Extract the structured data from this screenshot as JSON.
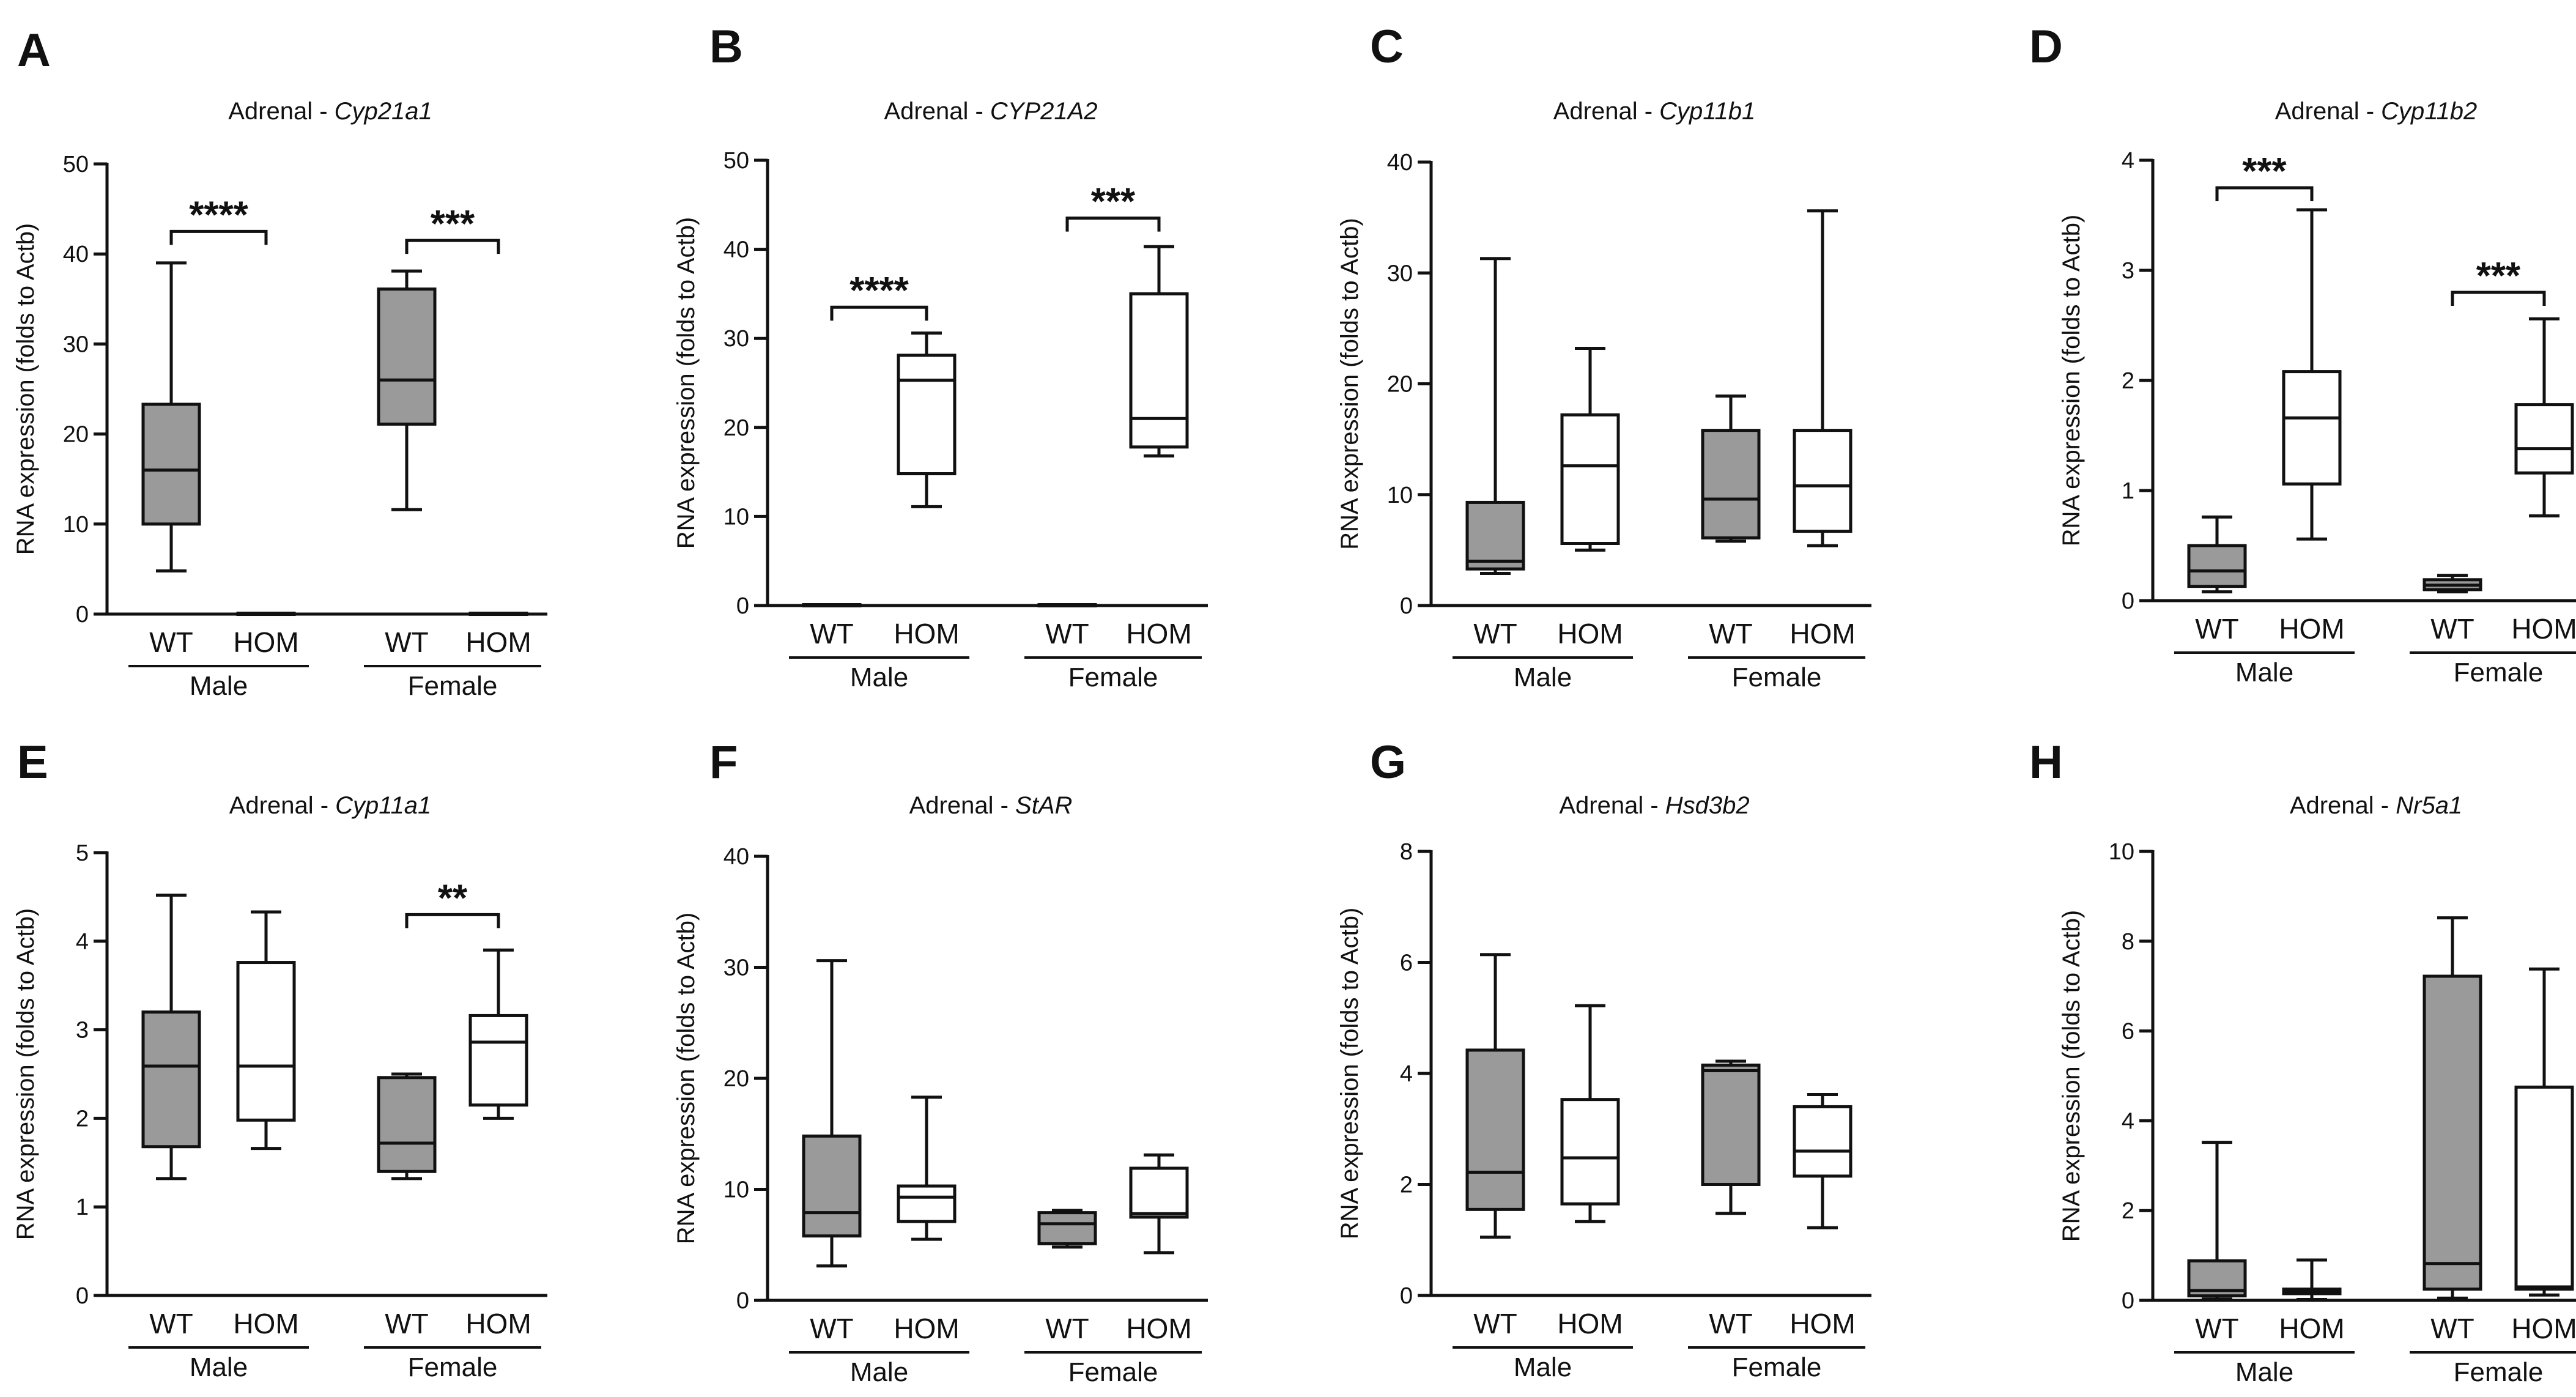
{
  "figure_title": "Adrenal RNA expression box plots",
  "colors": {
    "wt_fill": "#9a9a9a",
    "hom_fill": "#ffffff",
    "stroke": "#111111"
  },
  "chart_data": [
    {
      "id": "A",
      "type": "box",
      "title_prefix": "Adrenal - ",
      "gene": "Cyp21a1",
      "ylabel": "RNA expression (folds to Actb)",
      "ylim": [
        0,
        50
      ],
      "yticks": [
        0,
        10,
        20,
        30,
        40,
        50
      ],
      "groups": [
        {
          "sex": "Male",
          "boxes": [
            {
              "genotype": "WT",
              "min": 4.8,
              "q1": 10,
              "median": 16,
              "q3": 23.3,
              "max": 39
            },
            {
              "genotype": "HOM",
              "min": 0.1,
              "q1": 0.1,
              "median": 0.1,
              "q3": 0.1,
              "max": 0.1
            }
          ]
        },
        {
          "sex": "Female",
          "boxes": [
            {
              "genotype": "WT",
              "min": 11.6,
              "q1": 21.1,
              "median": 26,
              "q3": 36.1,
              "max": 38.1
            },
            {
              "genotype": "HOM",
              "min": 0.1,
              "q1": 0.1,
              "median": 0.1,
              "q3": 0.1,
              "max": 0.1
            }
          ]
        }
      ],
      "significance": [
        {
          "label": "****",
          "group": 0,
          "y": 42.5
        },
        {
          "label": "***",
          "group": 1,
          "y": 41.5
        }
      ]
    },
    {
      "id": "B",
      "type": "box",
      "title_prefix": "Adrenal - ",
      "gene": "CYP21A2",
      "ylabel": "RNA expression (folds to Actb)",
      "ylim": [
        0,
        50
      ],
      "yticks": [
        0,
        10,
        20,
        30,
        40,
        50
      ],
      "groups": [
        {
          "sex": "Male",
          "boxes": [
            {
              "genotype": "WT",
              "min": 0.1,
              "q1": 0.1,
              "median": 0.1,
              "q3": 0.1,
              "max": 0.1
            },
            {
              "genotype": "HOM",
              "min": 11.1,
              "q1": 14.8,
              "median": 25.3,
              "q3": 28.1,
              "max": 30.6
            }
          ]
        },
        {
          "sex": "Female",
          "boxes": [
            {
              "genotype": "WT",
              "min": 0.1,
              "q1": 0.1,
              "median": 0.1,
              "q3": 0.1,
              "max": 0.1
            },
            {
              "genotype": "HOM",
              "min": 16.8,
              "q1": 17.8,
              "median": 21,
              "q3": 35,
              "max": 40.3
            }
          ]
        }
      ],
      "significance": [
        {
          "label": "****",
          "group": 0,
          "y": 33.5
        },
        {
          "label": "***",
          "group": 1,
          "y": 43.5
        }
      ]
    },
    {
      "id": "C",
      "type": "box",
      "title_prefix": "Adrenal - ",
      "gene": "Cyp11b1",
      "ylabel": "RNA expression (folds to Actb)",
      "ylim": [
        0,
        40
      ],
      "yticks": [
        0,
        10,
        20,
        30,
        40
      ],
      "groups": [
        {
          "sex": "Male",
          "boxes": [
            {
              "genotype": "WT",
              "min": 2.9,
              "q1": 3.3,
              "median": 4,
              "q3": 9.3,
              "max": 31.3
            },
            {
              "genotype": "HOM",
              "min": 5,
              "q1": 5.6,
              "median": 12.6,
              "q3": 17.2,
              "max": 23.2
            }
          ]
        },
        {
          "sex": "Female",
          "boxes": [
            {
              "genotype": "WT",
              "min": 5.8,
              "q1": 6.1,
              "median": 9.6,
              "q3": 15.8,
              "max": 18.9
            },
            {
              "genotype": "HOM",
              "min": 5.4,
              "q1": 6.7,
              "median": 10.8,
              "q3": 15.8,
              "max": 35.6
            }
          ]
        }
      ],
      "significance": []
    },
    {
      "id": "D",
      "type": "box",
      "title_prefix": "Adrenal - ",
      "gene": "Cyp11b2",
      "ylabel": "RNA expression (folds to Actb)",
      "ylim": [
        0,
        4
      ],
      "yticks": [
        0,
        1,
        2,
        3,
        4
      ],
      "groups": [
        {
          "sex": "Male",
          "boxes": [
            {
              "genotype": "WT",
              "min": 0.08,
              "q1": 0.13,
              "median": 0.27,
              "q3": 0.5,
              "max": 0.76
            },
            {
              "genotype": "HOM",
              "min": 0.56,
              "q1": 1.06,
              "median": 1.66,
              "q3": 2.08,
              "max": 3.55
            }
          ]
        },
        {
          "sex": "Female",
          "boxes": [
            {
              "genotype": "WT",
              "min": 0.08,
              "q1": 0.1,
              "median": 0.14,
              "q3": 0.19,
              "max": 0.23
            },
            {
              "genotype": "HOM",
              "min": 0.77,
              "q1": 1.16,
              "median": 1.38,
              "q3": 1.78,
              "max": 2.56
            }
          ]
        }
      ],
      "significance": [
        {
          "label": "***",
          "group": 0,
          "y": 3.75
        },
        {
          "label": "***",
          "group": 1,
          "y": 2.8
        }
      ]
    },
    {
      "id": "E",
      "type": "box",
      "title_prefix": "Adrenal - ",
      "gene": "Cyp11a1",
      "ylabel": "RNA expression (folds to Actb)",
      "ylim": [
        0,
        5
      ],
      "yticks": [
        0,
        1,
        2,
        3,
        4,
        5
      ],
      "groups": [
        {
          "sex": "Male",
          "boxes": [
            {
              "genotype": "WT",
              "min": 1.32,
              "q1": 1.68,
              "median": 2.59,
              "q3": 3.2,
              "max": 4.52
            },
            {
              "genotype": "HOM",
              "min": 1.66,
              "q1": 1.98,
              "median": 2.59,
              "q3": 3.76,
              "max": 4.33
            }
          ]
        },
        {
          "sex": "Female",
          "boxes": [
            {
              "genotype": "WT",
              "min": 1.32,
              "q1": 1.4,
              "median": 1.72,
              "q3": 2.46,
              "max": 2.5
            },
            {
              "genotype": "HOM",
              "min": 2,
              "q1": 2.15,
              "median": 2.86,
              "q3": 3.16,
              "max": 3.9
            }
          ]
        }
      ],
      "significance": [
        {
          "label": "**",
          "group": 1,
          "y": 4.3
        }
      ]
    },
    {
      "id": "F",
      "type": "box",
      "title_prefix": "Adrenal - ",
      "gene": "StAR",
      "ylabel": "RNA expression (folds to Actb)",
      "ylim": [
        0,
        40
      ],
      "yticks": [
        0,
        10,
        20,
        30,
        40
      ],
      "groups": [
        {
          "sex": "Male",
          "boxes": [
            {
              "genotype": "WT",
              "min": 3.1,
              "q1": 5.8,
              "median": 7.9,
              "q3": 14.8,
              "max": 30.6
            },
            {
              "genotype": "HOM",
              "min": 5.5,
              "q1": 7.1,
              "median": 9.3,
              "q3": 10.3,
              "max": 18.3
            }
          ]
        },
        {
          "sex": "Female",
          "boxes": [
            {
              "genotype": "WT",
              "min": 4.8,
              "q1": 5.1,
              "median": 6.9,
              "q3": 7.9,
              "max": 8.1
            },
            {
              "genotype": "HOM",
              "min": 4.3,
              "q1": 7.5,
              "median": 7.8,
              "q3": 11.9,
              "max": 13.1
            }
          ]
        }
      ],
      "significance": []
    },
    {
      "id": "G",
      "type": "box",
      "title_prefix": "Adrenal - ",
      "gene": "Hsd3b2",
      "ylabel": "RNA expression (folds to Actb)",
      "ylim": [
        0,
        8
      ],
      "yticks": [
        0,
        2,
        4,
        6,
        8
      ],
      "groups": [
        {
          "sex": "Male",
          "boxes": [
            {
              "genotype": "WT",
              "min": 1.05,
              "q1": 1.55,
              "median": 2.22,
              "q3": 4.42,
              "max": 6.14
            },
            {
              "genotype": "HOM",
              "min": 1.33,
              "q1": 1.65,
              "median": 2.48,
              "q3": 3.53,
              "max": 5.22
            }
          ]
        },
        {
          "sex": "Female",
          "boxes": [
            {
              "genotype": "WT",
              "min": 1.48,
              "q1": 2.0,
              "median": 4.05,
              "q3": 4.15,
              "max": 4.22
            },
            {
              "genotype": "HOM",
              "min": 1.22,
              "q1": 2.15,
              "median": 2.6,
              "q3": 3.4,
              "max": 3.62
            }
          ]
        }
      ],
      "significance": []
    },
    {
      "id": "H",
      "type": "box",
      "title_prefix": "Adrenal - ",
      "gene": "Nr5a1",
      "ylabel": "RNA expression (folds to Actb)",
      "ylim": [
        0,
        10
      ],
      "yticks": [
        0,
        2,
        4,
        6,
        8,
        10
      ],
      "groups": [
        {
          "sex": "Male",
          "boxes": [
            {
              "genotype": "WT",
              "min": 0.03,
              "q1": 0.1,
              "median": 0.22,
              "q3": 0.88,
              "max": 3.52
            },
            {
              "genotype": "HOM",
              "min": 0.02,
              "q1": 0.15,
              "median": 0.2,
              "q3": 0.25,
              "max": 0.9
            }
          ]
        },
        {
          "sex": "Female",
          "boxes": [
            {
              "genotype": "WT",
              "min": 0.05,
              "q1": 0.25,
              "median": 0.82,
              "q3": 7.22,
              "max": 8.52
            },
            {
              "genotype": "HOM",
              "min": 0.12,
              "q1": 0.25,
              "median": 0.3,
              "q3": 4.75,
              "max": 7.38
            }
          ]
        }
      ],
      "significance": []
    }
  ]
}
